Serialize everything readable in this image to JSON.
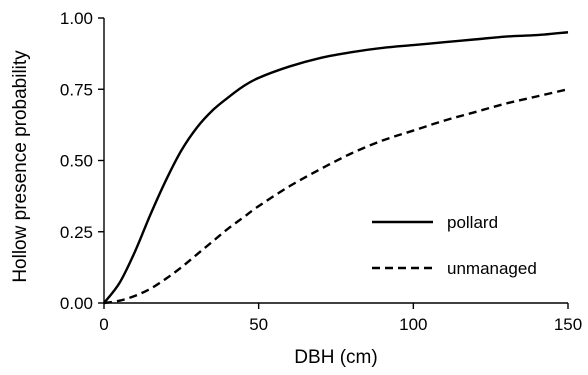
{
  "chart_data": {
    "type": "line",
    "title": "",
    "xlabel": "DBH (cm)",
    "ylabel": "Hollow presence probability",
    "xlim": [
      0,
      150
    ],
    "ylim": [
      0,
      1
    ],
    "x_ticks": [
      "0",
      "50",
      "100",
      "150"
    ],
    "y_ticks": [
      "0.00",
      "0.25",
      "0.50",
      "0.75",
      "1.00"
    ],
    "grid": false,
    "legend_position": "bottom-right",
    "x": [
      0,
      5,
      10,
      15,
      20,
      25,
      30,
      35,
      40,
      45,
      50,
      60,
      70,
      80,
      90,
      100,
      110,
      120,
      130,
      140,
      150
    ],
    "series": [
      {
        "name": "pollard",
        "style": "solid",
        "color": "#000000",
        "values": [
          0.0,
          0.07,
          0.18,
          0.31,
          0.43,
          0.535,
          0.615,
          0.675,
          0.72,
          0.76,
          0.79,
          0.83,
          0.86,
          0.88,
          0.895,
          0.905,
          0.915,
          0.925,
          0.935,
          0.94,
          0.95
        ]
      },
      {
        "name": "unmanaged",
        "style": "dashed",
        "color": "#000000",
        "values": [
          0.0,
          0.008,
          0.025,
          0.05,
          0.085,
          0.125,
          0.17,
          0.215,
          0.26,
          0.3,
          0.34,
          0.41,
          0.47,
          0.525,
          0.57,
          0.605,
          0.64,
          0.67,
          0.7,
          0.725,
          0.75
        ]
      }
    ]
  }
}
